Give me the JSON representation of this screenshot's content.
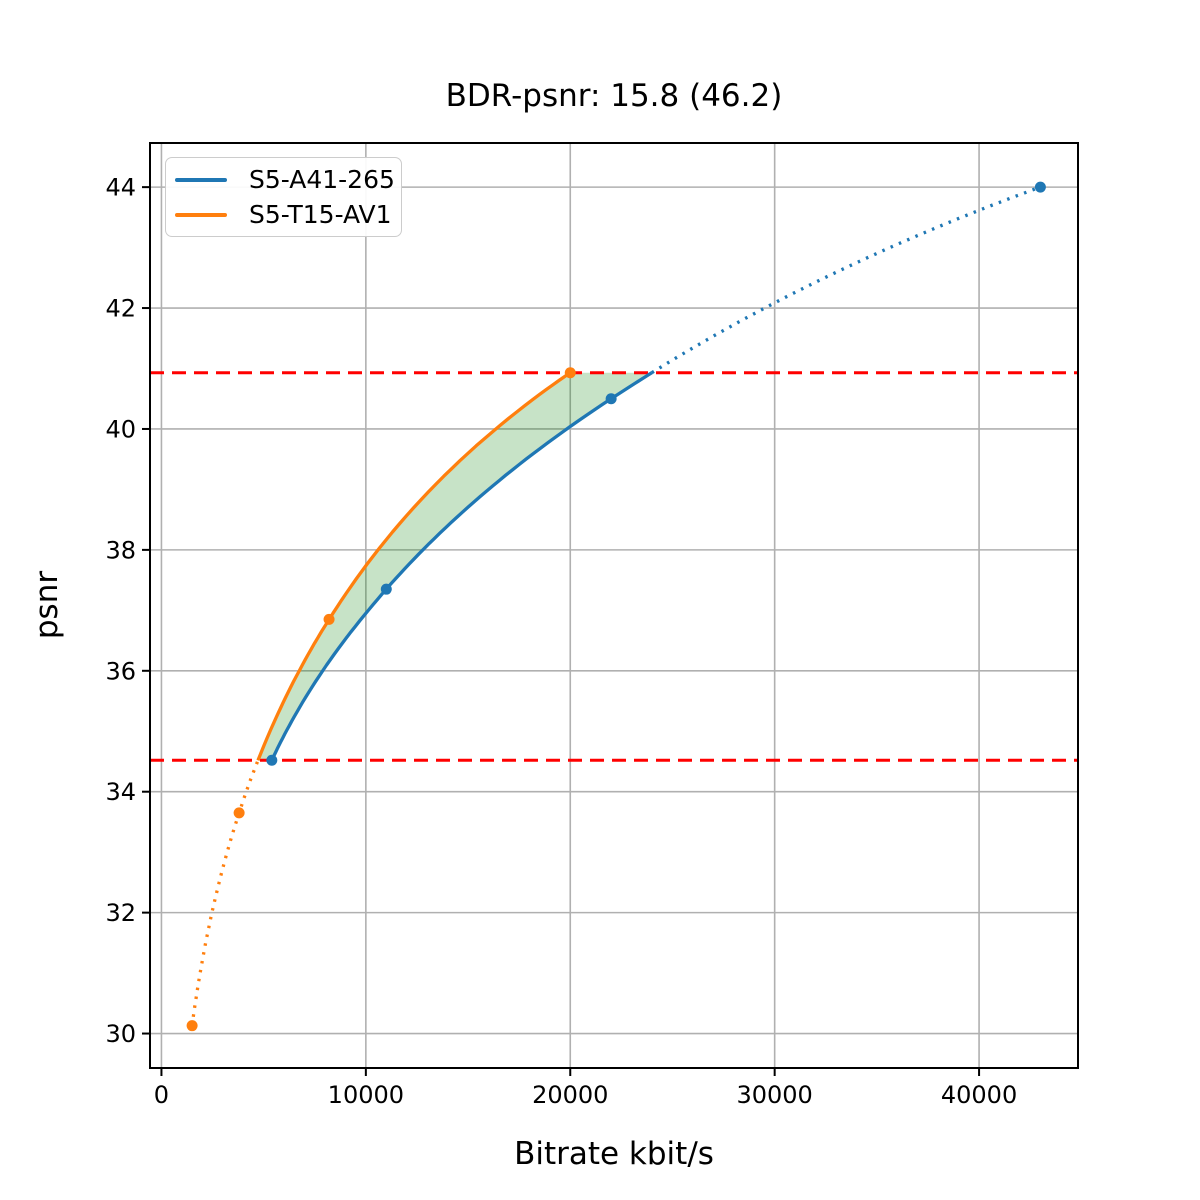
{
  "chart_data": {
    "type": "line",
    "title": "BDR-psnr: 15.8 (46.2)",
    "xlabel": "Bitrate kbit/s",
    "ylabel": "psnr",
    "xlim": [
      -560,
      44840
    ],
    "ylim": [
      29.43,
      44.73
    ],
    "xticks": [
      0,
      10000,
      20000,
      30000,
      40000
    ],
    "yticks": [
      30,
      32,
      34,
      36,
      38,
      40,
      42,
      44
    ],
    "grid": true,
    "grid_color": "#b0b0b0",
    "legend_position": "upper-left",
    "series": [
      {
        "name": "S5-A41-265",
        "color": "#1f77b4",
        "points": [
          [
            5400,
            34.52
          ],
          [
            11000,
            37.35
          ],
          [
            22000,
            40.5
          ],
          [
            43000,
            44.0
          ]
        ],
        "solid_range": "inside-band-and-below",
        "marker": "circle"
      },
      {
        "name": "S5-T15-AV1",
        "color": "#ff7f0e",
        "points": [
          [
            1500,
            30.13
          ],
          [
            3800,
            33.65
          ],
          [
            8200,
            36.85
          ],
          [
            20000,
            40.93
          ]
        ],
        "solid_range": "inside-band-and-above",
        "marker": "circle"
      }
    ],
    "hlines": {
      "values": [
        34.52,
        40.93
      ],
      "color": "#ff0000",
      "style": "dashed"
    },
    "band": {
      "between": [
        "S5-T15-AV1",
        "S5-A41-265"
      ],
      "y_range": [
        34.52,
        40.93
      ],
      "fill": "rgba(0,128,0,0.22)"
    }
  }
}
